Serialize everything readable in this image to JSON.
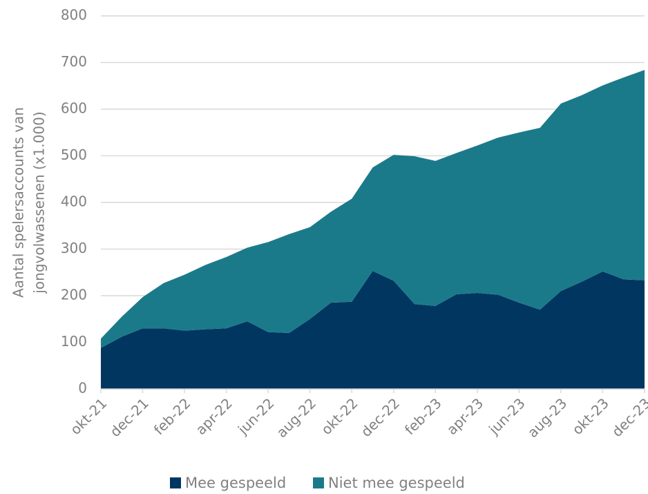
{
  "chart_data": {
    "type": "stacked_area",
    "ylabel": [
      "Aantal spelersaccounts van",
      "jongvolwassenen (x1.000)"
    ],
    "categories": [
      "okt-21",
      null,
      "dec-21",
      null,
      "feb-22",
      null,
      "apr-22",
      null,
      "jun-22",
      null,
      "aug-22",
      null,
      "okt-22",
      null,
      "dec-22",
      null,
      "feb-23",
      null,
      "apr-23",
      null,
      "jun-23",
      null,
      "aug-23",
      null,
      "okt-23",
      null,
      "dec-23"
    ],
    "series": [
      {
        "name": "Mee gespeeld",
        "color": "#003660",
        "values": [
          88,
          112,
          130,
          130,
          125,
          128,
          130,
          145,
          122,
          120,
          150,
          185,
          187,
          253,
          232,
          182,
          178,
          203,
          206,
          202,
          185,
          170,
          210,
          230,
          252,
          235,
          233
        ]
      },
      {
        "name": "Niet mee gespeeld",
        "color": "#1b7a8a",
        "values": [
          20,
          43,
          67,
          97,
          120,
          138,
          153,
          158,
          193,
          212,
          197,
          195,
          221,
          222,
          270,
          317,
          311,
          303,
          316,
          337,
          365,
          390,
          402,
          400,
          399,
          433,
          451
        ]
      }
    ],
    "ylim": [
      0,
      800
    ],
    "yticks": [
      0,
      100,
      200,
      300,
      400,
      500,
      600,
      700,
      800
    ],
    "grid": true,
    "legend": "bottom"
  }
}
